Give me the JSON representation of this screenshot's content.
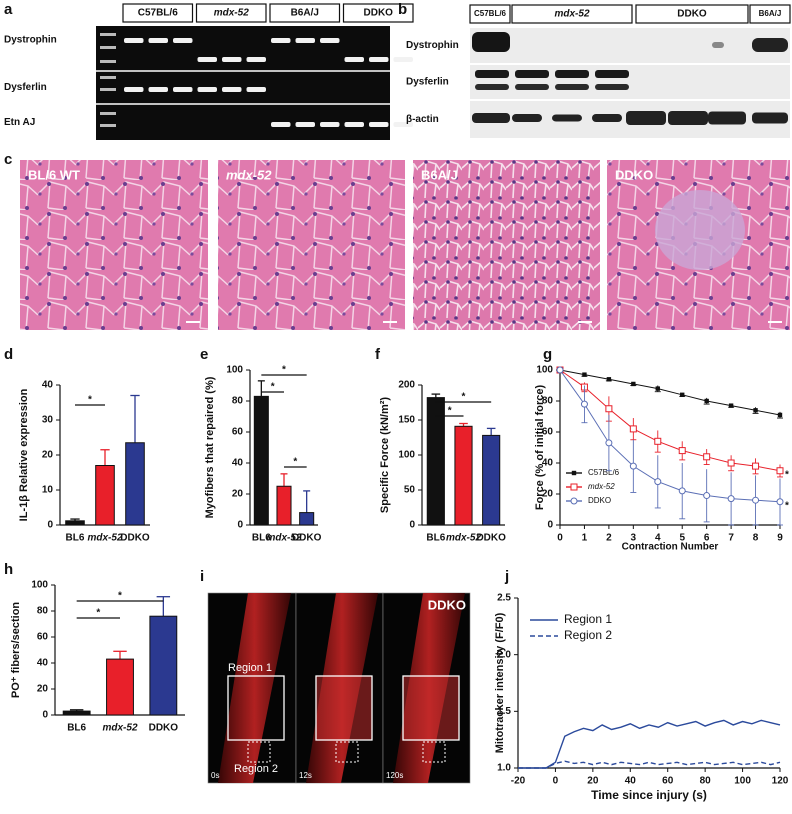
{
  "figure": {
    "a": {
      "letter": "a",
      "headers": [
        "C57BL/6",
        "mdx-52",
        "B6A/J",
        "DDKO"
      ],
      "header_style": [
        "normal",
        "italic",
        "normal",
        "normal"
      ],
      "rows": [
        "Dystrophin",
        "Dysferlin",
        "Etn AJ"
      ]
    },
    "b": {
      "letter": "b",
      "headers": [
        "C57BL/6",
        "mdx-52",
        "DDKO",
        "B6A/J"
      ],
      "header_style": [
        "normal",
        "italic",
        "normal",
        "normal"
      ],
      "rows": [
        "Dystrophin",
        "Dysferlin",
        "β-actin"
      ]
    },
    "c": {
      "letter": "c",
      "labels": [
        "BL/6 WT",
        "mdx-52",
        "B6A/J",
        "DDKO"
      ],
      "label_style": [
        "normal",
        "italic",
        "normal",
        "normal"
      ]
    },
    "i": {
      "letter": "i",
      "label": "DDKO",
      "times": [
        "0s",
        "12s",
        "120s"
      ],
      "regions": [
        "Region 1",
        "Region 2"
      ]
    }
  },
  "chart_data": [
    {
      "type": "bar",
      "panel": "d",
      "ylabel": "IL-1β Relative expression",
      "categories": [
        "BL6",
        "mdx-52",
        "DDKO"
      ],
      "category_style": [
        "normal",
        "italic",
        "normal"
      ],
      "values": [
        1.2,
        17,
        23.5
      ],
      "errors": [
        0.5,
        4.5,
        13.5
      ],
      "colors": [
        "#111111",
        "#e8202a",
        "#2b3990"
      ],
      "ylim": [
        0,
        40
      ],
      "yticks": [
        0,
        10,
        20,
        30,
        40
      ],
      "significance": [
        {
          "from": 0,
          "to": 1,
          "label": "*"
        }
      ]
    },
    {
      "type": "bar",
      "panel": "e",
      "ylabel": "Myofibers that repaired (%)",
      "categories": [
        "BL6",
        "mdx-52",
        "DDKO"
      ],
      "category_style": [
        "normal",
        "italic",
        "normal"
      ],
      "values": [
        83,
        25,
        8
      ],
      "errors": [
        10,
        8,
        14
      ],
      "colors": [
        "#111111",
        "#e8202a",
        "#2b3990"
      ],
      "ylim": [
        0,
        100
      ],
      "yticks": [
        0,
        20,
        40,
        60,
        80,
        100
      ],
      "significance": [
        {
          "from": 0,
          "to": 2,
          "label": "*"
        },
        {
          "from": 0,
          "to": 1,
          "label": "*"
        },
        {
          "from": 1,
          "to": 2,
          "label": "*"
        }
      ]
    },
    {
      "type": "bar",
      "panel": "f",
      "ylabel": "Specific Force (kN/m²)",
      "categories": [
        "BL6",
        "mdx-52",
        "DDKO"
      ],
      "category_style": [
        "normal",
        "italic",
        "normal"
      ],
      "values": [
        182,
        141,
        128
      ],
      "errors": [
        5,
        4,
        10
      ],
      "colors": [
        "#111111",
        "#e8202a",
        "#2b3990"
      ],
      "ylim": [
        0,
        200
      ],
      "yticks": [
        0,
        50,
        100,
        150,
        200
      ],
      "significance": [
        {
          "from": 0,
          "to": 2,
          "label": "*"
        },
        {
          "from": 0,
          "to": 1,
          "label": "*"
        }
      ]
    },
    {
      "type": "line",
      "panel": "g",
      "ylabel": "Force (% of initial force)",
      "xlabel": "Contraction Number",
      "x": [
        0,
        1,
        2,
        3,
        4,
        5,
        6,
        7,
        8,
        9
      ],
      "xlim": [
        0,
        9
      ],
      "xticks": [
        0,
        1,
        2,
        3,
        4,
        5,
        6,
        7,
        8,
        9
      ],
      "ylim": [
        0,
        100
      ],
      "yticks": [
        0,
        20,
        40,
        60,
        80,
        100
      ],
      "legend": "lower left",
      "series": [
        {
          "name": "C57BL/6",
          "color": "#111111",
          "marker": "filled-square",
          "values": [
            100,
            97,
            94,
            91,
            88,
            84,
            80,
            77,
            74,
            71
          ],
          "errors": [
            0,
            1,
            1,
            1,
            2,
            1,
            2,
            1,
            2,
            2
          ]
        },
        {
          "name": "mdx-52",
          "color": "#e8202a",
          "marker": "open-square",
          "values": [
            100,
            89,
            75,
            62,
            54,
            48,
            44,
            40,
            38,
            35
          ],
          "errors": [
            0,
            3,
            8,
            7,
            7,
            6,
            5,
            5,
            5,
            4
          ],
          "annotation": "*"
        },
        {
          "name": "DDKO",
          "color": "#5b6fb5",
          "marker": "open-circle",
          "values": [
            100,
            78,
            53,
            38,
            28,
            22,
            19,
            17,
            16,
            15
          ],
          "errors": [
            0,
            12,
            18,
            17,
            17,
            18,
            17,
            17,
            16,
            15
          ],
          "annotation": "*"
        }
      ]
    },
    {
      "type": "bar",
      "panel": "h",
      "ylabel": "PO⁺ fibers/section",
      "categories": [
        "BL6",
        "mdx-52",
        "DDKO"
      ],
      "category_style": [
        "normal",
        "italic",
        "normal"
      ],
      "values": [
        3,
        43,
        76
      ],
      "errors": [
        1,
        6,
        15
      ],
      "colors": [
        "#111111",
        "#e8202a",
        "#2b3990"
      ],
      "ylim": [
        0,
        100
      ],
      "yticks": [
        0,
        20,
        40,
        60,
        80,
        100
      ],
      "significance": [
        {
          "from": 0,
          "to": 2,
          "label": "*"
        },
        {
          "from": 0,
          "to": 1,
          "label": "*"
        }
      ]
    },
    {
      "type": "line",
      "panel": "j",
      "ylabel": "Mitotracker intensity (F/F0)",
      "xlabel": "Time since injury (s)",
      "x": [
        -20,
        -15,
        -10,
        -5,
        0,
        5,
        10,
        15,
        20,
        25,
        30,
        35,
        40,
        45,
        50,
        55,
        60,
        65,
        70,
        75,
        80,
        85,
        90,
        95,
        100,
        105,
        110,
        115,
        120
      ],
      "xlim": [
        -20,
        120
      ],
      "xticks": [
        -20,
        0,
        20,
        40,
        60,
        80,
        100,
        120
      ],
      "ylim": [
        1,
        2.5
      ],
      "yticks": [
        {
          "value": 1,
          "label": "1.0"
        },
        1.5,
        {
          "value": 2,
          "label": "2.0"
        },
        2.5
      ],
      "legend": "upper left",
      "series": [
        {
          "name": "Region 1",
          "color": "#2b4a9c",
          "dash": false,
          "values": [
            1,
            1,
            1,
            1,
            1.05,
            1.28,
            1.32,
            1.35,
            1.33,
            1.38,
            1.34,
            1.36,
            1.39,
            1.35,
            1.38,
            1.36,
            1.4,
            1.37,
            1.39,
            1.41,
            1.37,
            1.4,
            1.42,
            1.38,
            1.41,
            1.39,
            1.42,
            1.4,
            1.38
          ]
        },
        {
          "name": "Region 2",
          "color": "#2b4a9c",
          "dash": true,
          "values": [
            1,
            1,
            1,
            1,
            1.04,
            1.06,
            1.04,
            1.05,
            1.03,
            1.05,
            1.03,
            1.05,
            1.04,
            1.03,
            1.05,
            1.03,
            1.04,
            1.05,
            1.03,
            1.04,
            1.05,
            1.03,
            1.04,
            1.05,
            1.03,
            1.04,
            1.05,
            1.03,
            1.05
          ]
        }
      ]
    }
  ]
}
